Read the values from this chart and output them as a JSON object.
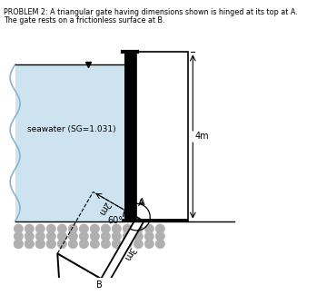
{
  "title_line1": "PROBLEM 2: A triangular gate having dimensions shown is hinged at its top at A.",
  "title_line2": "The gate rests on a frictionless surface at B.",
  "seawater_label": "seawater (SG=1.031)",
  "dim_4m": "4m",
  "dim_2m": "2m",
  "dim_3m": "3m",
  "angle_label": "60°",
  "label_A": "A",
  "label_B": "B",
  "water_color": "#cde4f0",
  "bg_color": "#ffffff"
}
